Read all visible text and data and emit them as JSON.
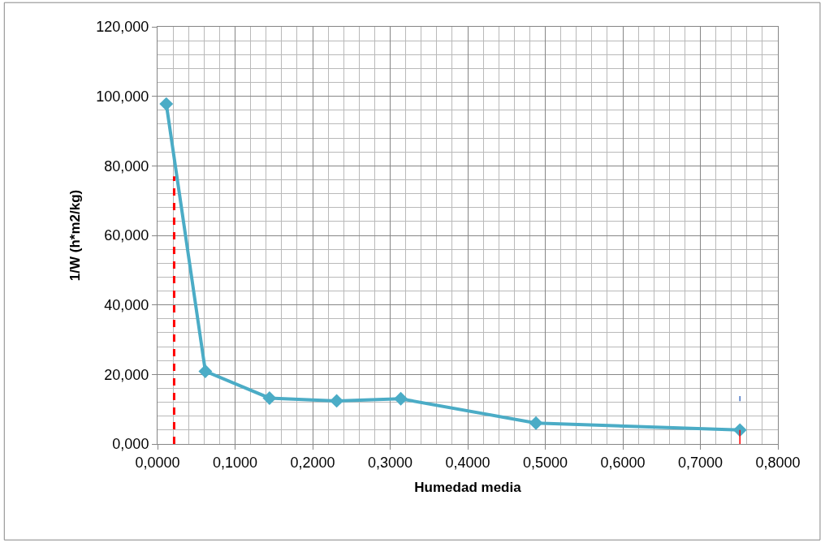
{
  "chart_data": {
    "type": "line",
    "xlabel": "Humedad media",
    "ylabel": "1/W (h*m2/kg)",
    "xlim": [
      0,
      0.8
    ],
    "ylim": [
      0,
      120
    ],
    "xticks": [
      {
        "value": 0,
        "label": "0,0000"
      },
      {
        "value": 0.1,
        "label": "0,1000"
      },
      {
        "value": 0.2,
        "label": "0,2000"
      },
      {
        "value": 0.3,
        "label": "0,3000"
      },
      {
        "value": 0.4,
        "label": "0,4000"
      },
      {
        "value": 0.5,
        "label": "0,5000"
      },
      {
        "value": 0.6,
        "label": "0,6000"
      },
      {
        "value": 0.7,
        "label": "0,7000"
      },
      {
        "value": 0.8,
        "label": "0,8000"
      }
    ],
    "yticks": [
      {
        "value": 0,
        "label": "0,000"
      },
      {
        "value": 20,
        "label": "20,000"
      },
      {
        "value": 40,
        "label": "40,000"
      },
      {
        "value": 60,
        "label": "60,000"
      },
      {
        "value": 80,
        "label": "80,000"
      },
      {
        "value": 100,
        "label": "100,000"
      },
      {
        "value": 120,
        "label": "120,000"
      }
    ],
    "grid": true,
    "series": [
      {
        "color": "#4bacc6",
        "marker": "diamond",
        "line_style": "solid",
        "x": [
          0.0113,
          0.0617,
          0.1444,
          0.231,
          0.3137,
          0.488,
          0.751
        ],
        "values": [
          97.8,
          20.9,
          13.2,
          12.4,
          13.0,
          6.0,
          4.0
        ]
      },
      {
        "color": "#ff0000",
        "marker": "none",
        "line_style": "dashed",
        "x": [
          0.0214,
          0.0214
        ],
        "values": [
          0,
          77
        ]
      },
      {
        "color": "#ff0000",
        "marker": "none",
        "line_style": "solid",
        "x": [
          0.751,
          0.751
        ],
        "values": [
          0,
          4.0
        ]
      },
      {
        "color": "#4472c4",
        "marker": "none",
        "line_style": "solid",
        "x": [
          0.751,
          0.751
        ],
        "values": [
          12.3,
          13.8
        ]
      }
    ]
  }
}
